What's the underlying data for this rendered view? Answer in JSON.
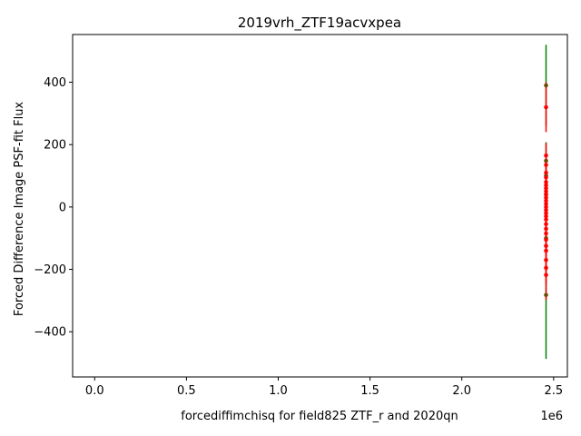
{
  "chart_data": {
    "type": "scatter",
    "title": "2019vrh_ZTF19acvxpea",
    "xlabel": "forcediffimchisq for field825 ZTF_r and 2020qn",
    "ylabel": "Forced Difference Image PSF-fit Flux",
    "x_offset_label": "1e6",
    "xlim": [
      -120000,
      2575000
    ],
    "ylim": [
      -545,
      553
    ],
    "x_ticks": [
      0,
      500000,
      1000000,
      1500000,
      2000000,
      2500000
    ],
    "x_tick_labels": [
      "0.0",
      "0.5",
      "1.0",
      "1.5",
      "2.0",
      "2.5"
    ],
    "y_ticks": [
      -400,
      -200,
      0,
      200,
      400
    ],
    "y_tick_labels": [
      "−400",
      "−200",
      "0",
      "200",
      "400"
    ],
    "grid": false,
    "series": [
      {
        "color": "#008000",
        "points": [
          {
            "x": 2458810,
            "y": 390,
            "err": 130
          },
          {
            "x": 2458812,
            "y": 148,
            "err": 60
          },
          {
            "x": 2458815,
            "y": 100,
            "err": 50
          },
          {
            "x": 2458818,
            "y": 40,
            "err": 40
          },
          {
            "x": 2458820,
            "y": -100,
            "err": 60
          },
          {
            "x": 2458822,
            "y": -282,
            "err": 205
          }
        ]
      },
      {
        "color": "#ff0000",
        "points": [
          {
            "x": 2458830,
            "y": 320,
            "err": 80
          },
          {
            "x": 2458831,
            "y": 165,
            "err": 40
          },
          {
            "x": 2458832,
            "y": 135,
            "err": 30
          },
          {
            "x": 2458833,
            "y": 110,
            "err": 25
          },
          {
            "x": 2458834,
            "y": 95,
            "err": 25
          },
          {
            "x": 2458835,
            "y": 80,
            "err": 20
          },
          {
            "x": 2458836,
            "y": 70,
            "err": 20
          },
          {
            "x": 2458837,
            "y": 60,
            "err": 20
          },
          {
            "x": 2458838,
            "y": 50,
            "err": 20
          },
          {
            "x": 2458839,
            "y": 40,
            "err": 20
          },
          {
            "x": 2458840,
            "y": 30,
            "err": 20
          },
          {
            "x": 2458841,
            "y": 20,
            "err": 20
          },
          {
            "x": 2458842,
            "y": 10,
            "err": 20
          },
          {
            "x": 2458843,
            "y": 0,
            "err": 20
          },
          {
            "x": 2458844,
            "y": -10,
            "err": 20
          },
          {
            "x": 2458845,
            "y": -20,
            "err": 20
          },
          {
            "x": 2458846,
            "y": -30,
            "err": 20
          },
          {
            "x": 2458847,
            "y": -40,
            "err": 20
          },
          {
            "x": 2458848,
            "y": -55,
            "err": 20
          },
          {
            "x": 2458849,
            "y": -70,
            "err": 25
          },
          {
            "x": 2458850,
            "y": -85,
            "err": 25
          },
          {
            "x": 2458851,
            "y": -105,
            "err": 30
          },
          {
            "x": 2458852,
            "y": -125,
            "err": 30
          },
          {
            "x": 2458853,
            "y": -140,
            "err": 35
          },
          {
            "x": 2458854,
            "y": -170,
            "err": 40
          },
          {
            "x": 2458855,
            "y": -195,
            "err": 50
          },
          {
            "x": 2458856,
            "y": -218,
            "err": 80
          }
        ]
      }
    ]
  }
}
